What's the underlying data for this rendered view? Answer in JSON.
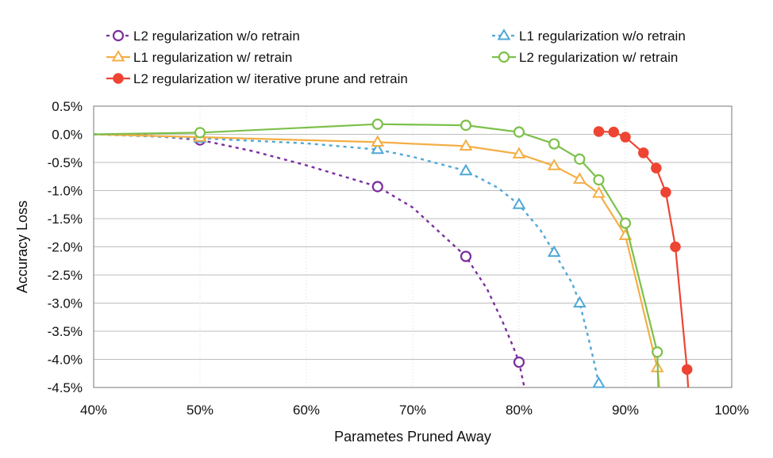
{
  "chart_data": {
    "type": "line",
    "title": "",
    "xlabel": "Parametes Pruned Away",
    "ylabel": "Accuracy Loss",
    "xlim": [
      40,
      100
    ],
    "ylim": [
      -4.5,
      0.5
    ],
    "x_ticks": [
      40,
      50,
      60,
      70,
      80,
      90,
      100
    ],
    "x_tick_labels": [
      "40%",
      "50%",
      "60%",
      "70%",
      "80%",
      "90%",
      "100%"
    ],
    "y_ticks": [
      0.5,
      0.0,
      -0.5,
      -1.0,
      -1.5,
      -2.0,
      -2.5,
      -3.0,
      -3.5,
      -4.0,
      -4.5
    ],
    "y_tick_labels": [
      "0.5%",
      "0.0%",
      "-0.5%",
      "-1.0%",
      "-1.5%",
      "-2.0%",
      "-2.5%",
      "-3.0%",
      "-3.5%",
      "-4.0%",
      "-4.5%"
    ],
    "grid": "horizontal",
    "legend_placement": "top",
    "series": [
      {
        "name": "L2 regularization w/o retrain",
        "color": "#7B2D9C",
        "dash": "dashed",
        "marker": "circle-open",
        "line_x": [
          40,
          45,
          50,
          55,
          60,
          63,
          66.7,
          70,
          72,
          75,
          77,
          78.5,
          79.5,
          80,
          80.5
        ],
        "line_y": [
          0.0,
          -0.02,
          -0.1,
          -0.3,
          -0.55,
          -0.72,
          -0.93,
          -1.3,
          -1.65,
          -2.17,
          -2.75,
          -3.35,
          -3.8,
          -4.05,
          -4.5
        ],
        "x": [
          50,
          66.7,
          75,
          80
        ],
        "y": [
          -0.1,
          -0.93,
          -2.17,
          -4.05
        ]
      },
      {
        "name": "L1 regularization w/o retrain",
        "color": "#4FA8D6",
        "dash": "dashed",
        "marker": "triangle-open",
        "line_x": [
          40,
          50,
          60,
          66.7,
          70,
          75,
          78,
          80,
          82,
          83.3,
          85,
          85.7,
          86.5,
          87,
          87.5
        ],
        "line_y": [
          0.0,
          -0.07,
          -0.16,
          -0.27,
          -0.4,
          -0.65,
          -0.95,
          -1.25,
          -1.7,
          -2.1,
          -2.65,
          -3.0,
          -3.6,
          -4.0,
          -4.43
        ],
        "x": [
          50,
          66.7,
          75,
          80,
          83.3,
          85.7,
          87.5
        ],
        "y": [
          -0.07,
          -0.27,
          -0.65,
          -1.25,
          -2.1,
          -3.0,
          -4.43
        ]
      },
      {
        "name": "L1 regularization w/ retrain",
        "color": "#F5AE45",
        "dash": "solid",
        "marker": "triangle-open",
        "line_x": [
          40,
          50,
          66.7,
          75,
          80,
          83.3,
          85.7,
          87.5,
          90,
          93,
          93.2
        ],
        "line_y": [
          0.0,
          -0.05,
          -0.14,
          -0.21,
          -0.35,
          -0.56,
          -0.8,
          -1.05,
          -1.8,
          -4.15,
          -4.5
        ],
        "x": [
          50,
          66.7,
          75,
          80,
          83.3,
          85.7,
          87.5,
          90,
          93
        ],
        "y": [
          -0.05,
          -0.14,
          -0.21,
          -0.35,
          -0.56,
          -0.8,
          -1.05,
          -1.8,
          -4.15
        ]
      },
      {
        "name": "L2 regularization w/ retrain",
        "color": "#7CC04A",
        "dash": "solid",
        "marker": "circle-open",
        "line_x": [
          40,
          50,
          66.7,
          75,
          80,
          83.3,
          85.7,
          87.5,
          90,
          93,
          93.1
        ],
        "line_y": [
          0.0,
          0.03,
          0.18,
          0.16,
          0.04,
          -0.17,
          -0.44,
          -0.81,
          -1.58,
          -3.87,
          -4.5
        ],
        "x": [
          50,
          66.7,
          75,
          80,
          83.3,
          85.7,
          87.5,
          90,
          93
        ],
        "y": [
          0.03,
          0.18,
          0.16,
          0.04,
          -0.17,
          -0.44,
          -0.81,
          -1.58,
          -3.87
        ]
      },
      {
        "name": "L2 regularization w/ iterative prune and retrain",
        "color": "#EE4433",
        "dash": "solid",
        "marker": "circle-filled",
        "line_x": [
          87.5,
          88.9,
          90,
          91.7,
          92.9,
          93.8,
          94.7,
          95.8,
          95.9
        ],
        "line_y": [
          0.05,
          0.04,
          -0.05,
          -0.33,
          -0.6,
          -1.03,
          -2.0,
          -4.18,
          -4.5
        ],
        "x": [
          87.5,
          88.9,
          90,
          91.7,
          92.9,
          93.8,
          94.7,
          95.8
        ],
        "y": [
          0.05,
          0.04,
          -0.05,
          -0.33,
          -0.6,
          -1.03,
          -2.0,
          -4.18
        ]
      }
    ]
  }
}
